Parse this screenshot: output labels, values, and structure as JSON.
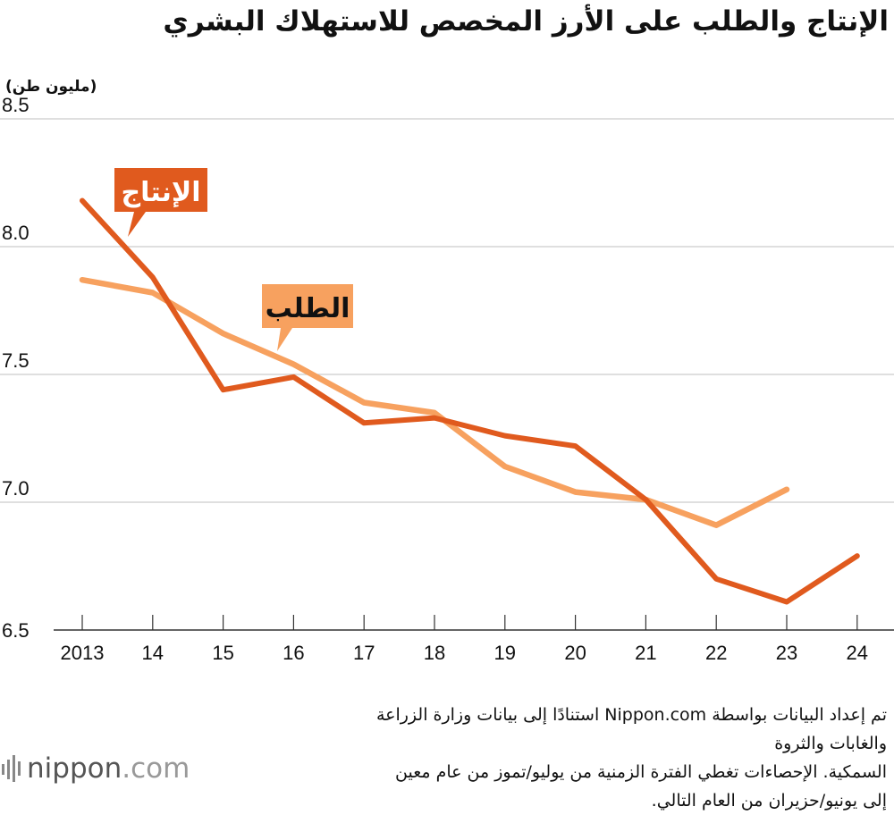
{
  "chart_data": {
    "type": "line",
    "title": "الإنتاج والطلب على الأرز المخصص للاستهلاك البشري",
    "ylabel": "(مليون طن)",
    "xlabel": "",
    "ylim": [
      6.5,
      8.5
    ],
    "yticks": [
      "8.5",
      "8.0",
      "7.5",
      "7.0",
      "6.5"
    ],
    "ytick_values": [
      8.5,
      8.0,
      7.5,
      7.0,
      6.5
    ],
    "categories": [
      "2013",
      "14",
      "15",
      "16",
      "17",
      "18",
      "19",
      "20",
      "21",
      "22",
      "23",
      "24"
    ],
    "series": [
      {
        "name": "الإنتاج",
        "color": "#E05A1E",
        "values": [
          8.18,
          7.88,
          7.44,
          7.49,
          7.31,
          7.33,
          7.26,
          7.22,
          7.01,
          6.7,
          6.61,
          6.79
        ]
      },
      {
        "name": "الطلب",
        "color": "#F7A15F",
        "values": [
          7.87,
          7.82,
          7.66,
          7.54,
          7.39,
          7.35,
          7.14,
          7.04,
          7.01,
          6.91,
          7.05,
          null
        ]
      }
    ],
    "grid": true,
    "legend": "inline callouts"
  },
  "source_lines": [
    "تم إعداد البيانات بواسطة Nippon.com استنادًا إلى بيانات وزارة الزراعة والغابات والثروة",
    "السمكية. الإحصاءات تغطي الفترة الزمنية من يوليو/تموز من عام معين",
    "إلى يونيو/حزيران من العام التالي."
  ],
  "logo_text": "nippon",
  "logo_suffix": ".com",
  "colors": {
    "grid": "#cccccc",
    "axis": "#333333",
    "label_text_production": "#ffffff",
    "label_text_demand": "#111111"
  }
}
